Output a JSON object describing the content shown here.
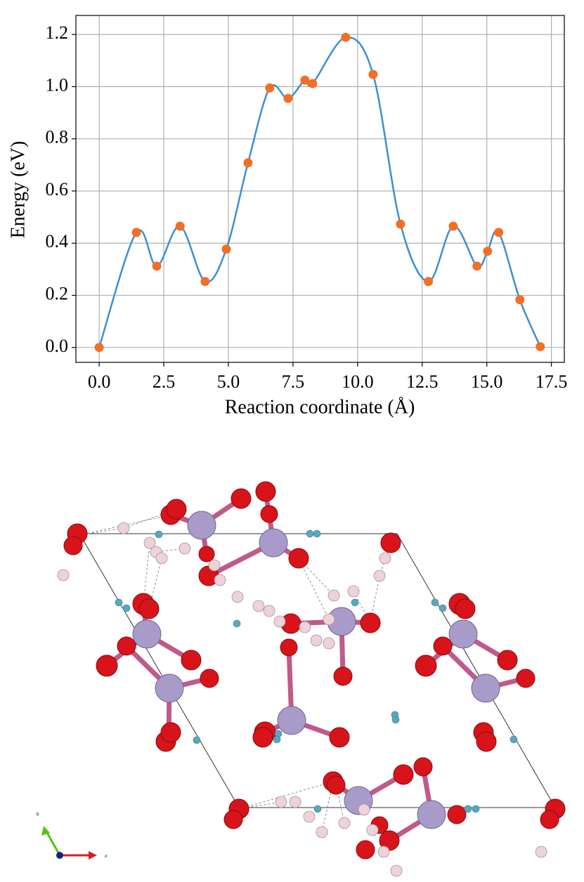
{
  "chart_data": {
    "type": "line",
    "xlabel": "Reaction coordinate (Å)",
    "ylabel": "Energy (eV)",
    "x": [
      0,
      1.44,
      2.23,
      3.13,
      4.1,
      4.92,
      5.76,
      6.6,
      7.31,
      7.96,
      8.26,
      9.54,
      10.6,
      11.66,
      12.74,
      13.7,
      14.62,
      15.03,
      15.46,
      16.28,
      17.07
    ],
    "values": [
      0,
      0.441,
      0.312,
      0.465,
      0.253,
      0.377,
      0.708,
      0.995,
      0.955,
      1.025,
      1.012,
      1.189,
      1.047,
      0.473,
      0.253,
      0.465,
      0.312,
      0.369,
      0.441,
      0.183,
      0.003
    ],
    "line_color": "#3c8fd4",
    "marker_color": "#f27023",
    "xlim": [
      -0.9,
      18.0
    ],
    "ylim": [
      -0.057,
      1.273
    ],
    "xticks": [
      {
        "value": 0,
        "label": "0.0"
      },
      2.5,
      {
        "value": 5,
        "label": "5.0"
      },
      7.5,
      {
        "value": 10,
        "label": "10.0"
      },
      12.5,
      {
        "value": 15,
        "label": "15.0"
      },
      17.5
    ],
    "yticks": [
      {
        "value": 0,
        "label": "0.0"
      },
      0.2,
      0.4,
      0.6,
      0.8,
      {
        "value": 1,
        "label": "1.0"
      },
      1.2
    ],
    "grid": true
  },
  "structure": {
    "axis_labels": [
      "b",
      "a"
    ]
  }
}
